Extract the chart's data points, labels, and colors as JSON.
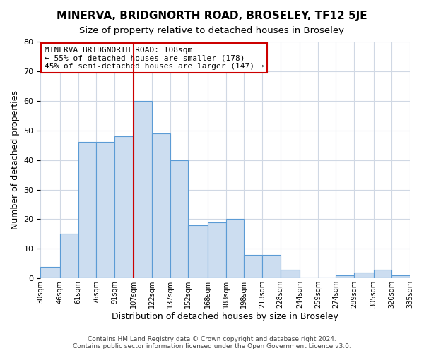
{
  "title": "MINERVA, BRIDGNORTH ROAD, BROSELEY, TF12 5JE",
  "subtitle": "Size of property relative to detached houses in Broseley",
  "xlabel": "Distribution of detached houses by size in Broseley",
  "ylabel": "Number of detached properties",
  "footer_lines": [
    "Contains HM Land Registry data © Crown copyright and database right 2024.",
    "Contains public sector information licensed under the Open Government Licence v3.0."
  ],
  "bin_edges": [
    30,
    46,
    61,
    76,
    91,
    107,
    122,
    137,
    152,
    168,
    183,
    198,
    213,
    228,
    244,
    259,
    274,
    289,
    305,
    320,
    335
  ],
  "heights": [
    4,
    15,
    46,
    46,
    48,
    60,
    49,
    40,
    18,
    19,
    20,
    8,
    8,
    3,
    0,
    0,
    1,
    2,
    3,
    1
  ],
  "tick_labels": [
    "30sqm",
    "46sqm",
    "61sqm",
    "76sqm",
    "91sqm",
    "107sqm",
    "122sqm",
    "137sqm",
    "152sqm",
    "168sqm",
    "183sqm",
    "198sqm",
    "213sqm",
    "228sqm",
    "244sqm",
    "259sqm",
    "274sqm",
    "289sqm",
    "305sqm",
    "320sqm",
    "335sqm"
  ],
  "bar_color": "#ccddf0",
  "bar_edge_color": "#5b9bd5",
  "vline_x": 107,
  "vline_color": "#cc0000",
  "annotation_text": "MINERVA BRIDGNORTH ROAD: 108sqm\n← 55% of detached houses are smaller (178)\n45% of semi-detached houses are larger (147) →",
  "annotation_box_color": "#ffffff",
  "annotation_box_edge": "#cc0000",
  "ylim": [
    0,
    80
  ],
  "yticks": [
    0,
    10,
    20,
    30,
    40,
    50,
    60,
    70,
    80
  ],
  "bg_color": "#ffffff",
  "grid_color": "#d0d8e4"
}
